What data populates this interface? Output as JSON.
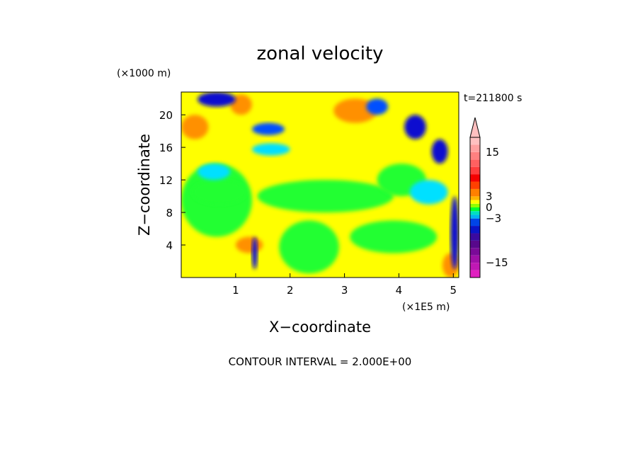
{
  "chart_data": {
    "type": "heatmap",
    "title": "zonal velocity",
    "xlabel": "X−coordinate",
    "ylabel": "Z−coordinate",
    "x_unit_label": "(×1E5 m)",
    "y_unit_label": "(×1000 m)",
    "time_label": "t=211800 s",
    "footer": "CONTOUR INTERVAL = 2.000E+00",
    "xlim": [
      0,
      5.1
    ],
    "ylim": [
      0,
      22.8
    ],
    "x_ticks": [
      "1",
      "2",
      "3",
      "4",
      "5"
    ],
    "y_ticks": [
      "4",
      "8",
      "12",
      "16",
      "20"
    ],
    "colorbar": {
      "tick_labels": [
        {
          "label": "15",
          "value": 15
        },
        {
          "label": "3",
          "value": 3
        },
        {
          "label": "0",
          "value": 0
        },
        {
          "label": "−3",
          "value": -3
        },
        {
          "label": "−15",
          "value": -15
        }
      ],
      "levels": [
        {
          "from": -19,
          "to": -17,
          "color": "#e020c0"
        },
        {
          "from": -17,
          "to": -15,
          "color": "#c018b4"
        },
        {
          "from": -15,
          "to": -13,
          "color": "#a010a8"
        },
        {
          "from": -13,
          "to": -11,
          "color": "#7a0a98"
        },
        {
          "from": -11,
          "to": -9,
          "color": "#58088c"
        },
        {
          "from": -9,
          "to": -7,
          "color": "#3a0aa0"
        },
        {
          "from": -7,
          "to": -5,
          "color": "#0a14c8"
        },
        {
          "from": -5,
          "to": -3,
          "color": "#0044e8"
        },
        {
          "from": -3,
          "to": -2,
          "color": "#00b4f0"
        },
        {
          "from": -2,
          "to": -1,
          "color": "#00e0c0"
        },
        {
          "from": -1,
          "to": 0,
          "color": "#00ff30"
        },
        {
          "from": 0,
          "to": 1,
          "color": "#90ff00"
        },
        {
          "from": 1,
          "to": 2,
          "color": "#ffff00"
        },
        {
          "from": 2,
          "to": 3,
          "color": "#ffb400"
        },
        {
          "from": 3,
          "to": 5,
          "color": "#ff8000"
        },
        {
          "from": 5,
          "to": 7,
          "color": "#ff4000"
        },
        {
          "from": 7,
          "to": 9,
          "color": "#f40000"
        },
        {
          "from": 9,
          "to": 11,
          "color": "#ff3c3c"
        },
        {
          "from": 11,
          "to": 13,
          "color": "#ff6060"
        },
        {
          "from": 13,
          "to": 15,
          "color": "#ff8080"
        },
        {
          "from": 15,
          "to": 17,
          "color": "#ffa0a0"
        },
        {
          "from": 17,
          "to": 19,
          "color": "#ffc0c0"
        }
      ]
    },
    "field_colors": {
      "dark_blue": "#1010d0",
      "blue": "#0050ff",
      "cyan": "#00e0ff",
      "green": "#20ff30",
      "light_green": "#a0ff40",
      "yellow": "#ffff00",
      "light_orange": "#ffc060",
      "orange": "#ff9000",
      "red_orange": "#ff5020"
    },
    "field_regions": [
      {
        "x": [
          0,
          5.1
        ],
        "z": [
          0,
          22.8
        ],
        "color": "yellow"
      },
      {
        "x": [
          0,
          1.3
        ],
        "z": [
          5,
          14
        ],
        "color": "green"
      },
      {
        "x": [
          0.2,
          1.2
        ],
        "z": [
          9,
          12
        ],
        "color": "green"
      },
      {
        "x": [
          1.4,
          3.9
        ],
        "z": [
          8,
          12
        ],
        "color": "green"
      },
      {
        "x": [
          1.8,
          2.9
        ],
        "z": [
          0.5,
          7
        ],
        "color": "green"
      },
      {
        "x": [
          3.1,
          4.7
        ],
        "z": [
          3,
          7
        ],
        "color": "green"
      },
      {
        "x": [
          3.6,
          4.5
        ],
        "z": [
          10,
          14
        ],
        "color": "green"
      },
      {
        "x": [
          0.3,
          0.9
        ],
        "z": [
          12,
          14
        ],
        "color": "cyan"
      },
      {
        "x": [
          1.3,
          2.0
        ],
        "z": [
          15,
          16.5
        ],
        "color": "cyan"
      },
      {
        "x": [
          4.2,
          4.9
        ],
        "z": [
          9,
          12
        ],
        "color": "cyan"
      },
      {
        "x": [
          0.0,
          0.5
        ],
        "z": [
          17,
          20
        ],
        "color": "orange"
      },
      {
        "x": [
          2.8,
          3.6
        ],
        "z": [
          19,
          22
        ],
        "color": "orange"
      },
      {
        "x": [
          0.9,
          1.3
        ],
        "z": [
          20,
          22.5
        ],
        "color": "orange"
      },
      {
        "x": [
          1.0,
          1.5
        ],
        "z": [
          3,
          5
        ],
        "color": "orange"
      },
      {
        "x": [
          4.8,
          5.1
        ],
        "z": [
          0,
          3
        ],
        "color": "orange"
      },
      {
        "x": [
          0.3,
          1.0
        ],
        "z": [
          21,
          22.8
        ],
        "color": "dark_blue"
      },
      {
        "x": [
          1.3,
          1.9
        ],
        "z": [
          17.5,
          19
        ],
        "color": "blue"
      },
      {
        "x": [
          4.1,
          4.5
        ],
        "z": [
          17,
          20
        ],
        "color": "dark_blue"
      },
      {
        "x": [
          4.6,
          4.9
        ],
        "z": [
          14,
          17
        ],
        "color": "dark_blue"
      },
      {
        "x": [
          4.95,
          5.1
        ],
        "z": [
          1,
          10
        ],
        "color": "dark_blue"
      },
      {
        "x": [
          1.3,
          1.4
        ],
        "z": [
          1,
          5
        ],
        "color": "dark_blue"
      },
      {
        "x": [
          3.4,
          3.8
        ],
        "z": [
          20,
          22
        ],
        "color": "blue"
      }
    ]
  }
}
